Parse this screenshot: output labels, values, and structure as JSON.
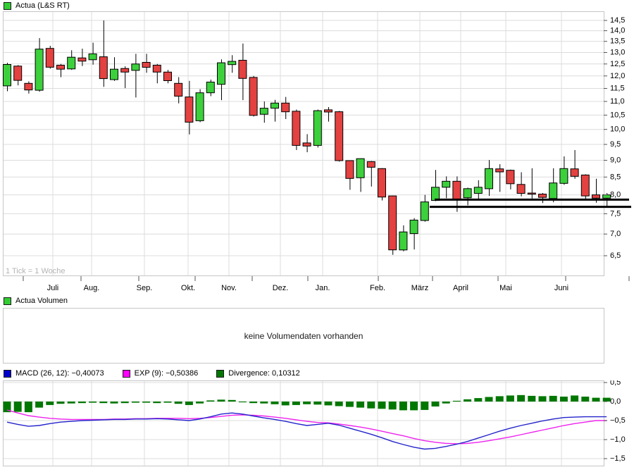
{
  "title_legend": {
    "label": "Actua (L&S RT)"
  },
  "volume_legend": {
    "label": "Actua Volumen"
  },
  "volume_message": "keine Volumendaten vorhanden",
  "footnote": "1 Tick = 1 Woche",
  "colors": {
    "up_fill": "#3cd03c",
    "down_fill": "#e44141",
    "outline": "#000000",
    "grid": "#dcdcdc",
    "panel_border": "#c6c6c6",
    "macd_line": "#2424cc",
    "exp_line": "#ee22ee",
    "divergence_bar": "#007700",
    "legend_swatch_green": "#33cc33",
    "legend_swatch_blue": "#0000cc",
    "legend_swatch_magenta": "#ff00ff",
    "legend_swatch_darkgreen": "#007700",
    "support_line": "#000000",
    "footnote_color": "#b4b4b4",
    "axis_text": "#000000"
  },
  "price_axis": {
    "labels": [
      "14,5",
      "14,0",
      "13,5",
      "13,0",
      "12,5",
      "12,0",
      "11,5",
      "11,0",
      "10,5",
      "10,0",
      "9,5",
      "9,0",
      "8,5",
      "8,0",
      "7,5",
      "7,0",
      "6,5"
    ],
    "values": [
      14.5,
      14.0,
      13.5,
      13.0,
      12.5,
      12.0,
      11.5,
      11.0,
      10.5,
      10.0,
      9.5,
      9.0,
      8.5,
      8.0,
      7.5,
      7.0,
      6.5
    ]
  },
  "macd_axis": {
    "labels": [
      "0,5",
      "0,0",
      "−0,5",
      "−1,0",
      "−1,5"
    ],
    "values": [
      0.5,
      0.0,
      -0.5,
      -1.0,
      -1.5
    ]
  },
  "x_axis": {
    "months": [
      {
        "label": "Juli",
        "x": 71
      },
      {
        "label": "Aug.",
        "x": 126
      },
      {
        "label": "Sep.",
        "x": 201
      },
      {
        "label": "Okt.",
        "x": 263
      },
      {
        "label": "Nov.",
        "x": 321
      },
      {
        "label": "Dez.",
        "x": 394
      },
      {
        "label": "Jan.",
        "x": 454
      },
      {
        "label": "Feb.",
        "x": 532
      },
      {
        "label": "März",
        "x": 592
      },
      {
        "label": "April",
        "x": 650
      },
      {
        "label": "Mai",
        "x": 714
      },
      {
        "label": "Juni",
        "x": 793
      }
    ],
    "boundary_ticks_x": [
      29,
      111,
      193,
      273,
      354,
      433,
      533,
      610,
      703,
      799,
      889
    ]
  },
  "macd_legend": {
    "items": [
      {
        "label": "MACD (26, 12): −0,40073",
        "color": "#0000cc"
      },
      {
        "label": "EXP (9): −0,50386",
        "color": "#ff00ff"
      },
      {
        "label": "Divergence: 0,10312",
        "color": "#007700"
      }
    ]
  },
  "chart_data": [
    {
      "type": "candlestick",
      "title": "Actua (L&S RT)",
      "timeframe_note": "1 Tick = 1 Woche",
      "y_scale": "log",
      "ylim": [
        6.5,
        14.5
      ],
      "x_months": [
        "Juli",
        "Aug.",
        "Sep.",
        "Okt.",
        "Nov.",
        "Dez.",
        "Jan.",
        "Feb.",
        "März",
        "April",
        "Mai",
        "Juni"
      ],
      "ohlc": [
        [
          11.6,
          12.55,
          11.39,
          12.48
        ],
        [
          12.41,
          12.45,
          11.62,
          11.82
        ],
        [
          11.7,
          11.78,
          11.3,
          11.44
        ],
        [
          11.43,
          13.65,
          11.37,
          13.15
        ],
        [
          13.18,
          13.3,
          12.3,
          12.36
        ],
        [
          12.45,
          12.5,
          11.95,
          12.28
        ],
        [
          12.29,
          13.1,
          12.25,
          12.79
        ],
        [
          12.76,
          13.17,
          12.41,
          12.62
        ],
        [
          12.68,
          13.44,
          12.47,
          12.94
        ],
        [
          12.81,
          14.5,
          11.56,
          11.89
        ],
        [
          11.85,
          12.79,
          11.8,
          12.28
        ],
        [
          12.31,
          12.4,
          11.51,
          12.16
        ],
        [
          12.23,
          12.94,
          11.15,
          12.5
        ],
        [
          12.57,
          12.94,
          12.13,
          12.36
        ],
        [
          12.45,
          12.5,
          11.7,
          12.16
        ],
        [
          12.16,
          12.25,
          11.7,
          11.81
        ],
        [
          11.7,
          11.95,
          10.93,
          11.2
        ],
        [
          11.17,
          11.8,
          9.83,
          10.25
        ],
        [
          10.3,
          11.47,
          10.25,
          11.33
        ],
        [
          11.33,
          11.85,
          11.2,
          11.75
        ],
        [
          11.66,
          12.7,
          11.05,
          12.55
        ],
        [
          12.47,
          12.88,
          12.13,
          12.61
        ],
        [
          12.66,
          13.4,
          11.05,
          11.9
        ],
        [
          11.94,
          12.0,
          10.45,
          10.49
        ],
        [
          10.53,
          11.0,
          10.23,
          10.75
        ],
        [
          10.75,
          11.06,
          10.27,
          10.94
        ],
        [
          10.94,
          11.17,
          10.36,
          10.62
        ],
        [
          10.64,
          10.7,
          9.32,
          9.47
        ],
        [
          9.55,
          9.84,
          9.25,
          9.45
        ],
        [
          9.47,
          10.7,
          9.4,
          10.66
        ],
        [
          10.69,
          10.79,
          10.27,
          10.61
        ],
        [
          10.62,
          10.65,
          8.96,
          8.99
        ],
        [
          8.99,
          9.0,
          8.14,
          8.46
        ],
        [
          8.48,
          9.06,
          8.08,
          9.05
        ],
        [
          8.96,
          8.98,
          8.23,
          8.79
        ],
        [
          8.75,
          8.76,
          7.85,
          7.94
        ],
        [
          7.97,
          7.98,
          6.52,
          6.63
        ],
        [
          6.63,
          7.21,
          6.6,
          7.05
        ],
        [
          7.01,
          7.39,
          6.64,
          7.34
        ],
        [
          7.33,
          8.0,
          7.3,
          7.81
        ],
        [
          7.85,
          8.71,
          7.83,
          8.21
        ],
        [
          8.21,
          8.52,
          7.91,
          8.38
        ],
        [
          8.38,
          8.52,
          7.55,
          7.88
        ],
        [
          7.92,
          8.2,
          7.72,
          8.17
        ],
        [
          8.04,
          8.41,
          7.85,
          8.21
        ],
        [
          8.17,
          9.01,
          7.97,
          8.75
        ],
        [
          8.74,
          8.88,
          8.08,
          8.65
        ],
        [
          8.7,
          8.72,
          8.15,
          8.31
        ],
        [
          8.29,
          8.64,
          7.96,
          8.04
        ],
        [
          8.05,
          8.76,
          7.9,
          8.02
        ],
        [
          8.02,
          8.05,
          7.78,
          7.93
        ],
        [
          7.9,
          8.76,
          7.8,
          8.33
        ],
        [
          8.32,
          9.12,
          8.28,
          8.75
        ],
        [
          8.74,
          9.32,
          8.45,
          8.52
        ],
        [
          8.56,
          8.58,
          7.85,
          7.97
        ],
        [
          8.0,
          8.45,
          7.79,
          7.91
        ],
        [
          7.91,
          8.05,
          7.7,
          8.0
        ]
      ],
      "support_lines": [
        {
          "price": 7.87,
          "x1": 613,
          "x2": 889
        },
        {
          "price": 7.68,
          "x1": 606,
          "x2": 894
        }
      ]
    },
    {
      "type": "macd",
      "ylim": [
        -1.5,
        0.5
      ],
      "last_values": {
        "macd": "−0,40073",
        "exp": "−0,50386",
        "divergence": "0,10312"
      },
      "series": [
        {
          "name": "MACD (26, 12)",
          "kind": "line",
          "color": "#2424cc",
          "values": [
            -0.54,
            -0.6,
            -0.65,
            -0.63,
            -0.58,
            -0.54,
            -0.52,
            -0.5,
            -0.49,
            -0.48,
            -0.47,
            -0.47,
            -0.46,
            -0.46,
            -0.45,
            -0.46,
            -0.48,
            -0.5,
            -0.46,
            -0.4,
            -0.33,
            -0.3,
            -0.33,
            -0.38,
            -0.43,
            -0.47,
            -0.52,
            -0.58,
            -0.63,
            -0.6,
            -0.57,
            -0.62,
            -0.7,
            -0.78,
            -0.86,
            -0.95,
            -1.05,
            -1.13,
            -1.2,
            -1.25,
            -1.23,
            -1.18,
            -1.12,
            -1.05,
            -0.96,
            -0.87,
            -0.78,
            -0.7,
            -0.63,
            -0.57,
            -0.51,
            -0.46,
            -0.42,
            -0.41,
            -0.4,
            -0.4,
            -0.4
          ]
        },
        {
          "name": "EXP (9)",
          "kind": "line",
          "color": "#ee22ee",
          "values": [
            -0.22,
            -0.3,
            -0.37,
            -0.41,
            -0.44,
            -0.46,
            -0.47,
            -0.47,
            -0.47,
            -0.47,
            -0.46,
            -0.46,
            -0.45,
            -0.45,
            -0.44,
            -0.44,
            -0.44,
            -0.45,
            -0.44,
            -0.42,
            -0.39,
            -0.36,
            -0.35,
            -0.36,
            -0.38,
            -0.41,
            -0.44,
            -0.48,
            -0.52,
            -0.55,
            -0.56,
            -0.59,
            -0.63,
            -0.67,
            -0.72,
            -0.78,
            -0.84,
            -0.9,
            -0.97,
            -1.03,
            -1.07,
            -1.1,
            -1.11,
            -1.1,
            -1.07,
            -1.03,
            -0.98,
            -0.93,
            -0.87,
            -0.81,
            -0.75,
            -0.69,
            -0.63,
            -0.58,
            -0.54,
            -0.5,
            -0.5
          ]
        },
        {
          "name": "Divergence",
          "kind": "bar",
          "color": "#007700",
          "values": [
            -0.28,
            -0.27,
            -0.28,
            -0.16,
            -0.09,
            -0.06,
            -0.05,
            -0.04,
            -0.03,
            -0.04,
            -0.05,
            -0.04,
            -0.03,
            -0.03,
            -0.04,
            -0.03,
            -0.06,
            -0.09,
            -0.05,
            0.03,
            0.05,
            0.04,
            -0.02,
            -0.04,
            -0.05,
            -0.07,
            -0.1,
            -0.09,
            -0.07,
            -0.08,
            -0.1,
            -0.12,
            -0.14,
            -0.16,
            -0.18,
            -0.19,
            -0.21,
            -0.23,
            -0.23,
            -0.22,
            -0.13,
            -0.05,
            0.02,
            0.06,
            0.09,
            0.12,
            0.14,
            0.16,
            0.17,
            0.15,
            0.14,
            0.15,
            0.13,
            0.16,
            0.13,
            0.1,
            0.1
          ]
        }
      ]
    },
    {
      "type": "volume",
      "title": "Actua Volumen",
      "message": "keine Volumendaten vorhanden",
      "values": []
    }
  ]
}
